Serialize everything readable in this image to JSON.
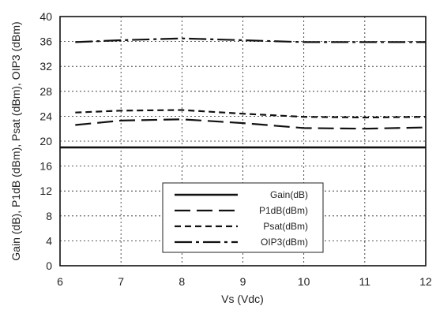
{
  "chart_data": {
    "type": "line",
    "title": "",
    "xlabel": "Vs (Vdc)",
    "ylabel": "Gain (dB), P1dB (dBm), Psat (dBm), OIP3 (dBm)",
    "xlim": [
      6,
      12
    ],
    "ylim": [
      0,
      40
    ],
    "xticks": [
      6,
      7,
      8,
      9,
      10,
      11,
      12
    ],
    "yticks": [
      0,
      4,
      8,
      12,
      16,
      20,
      24,
      28,
      32,
      36,
      40
    ],
    "grid": true,
    "legend_position": "lower-center",
    "x": [
      6.25,
      7,
      8,
      9,
      10,
      11,
      12
    ],
    "series": [
      {
        "name": "Gain(dB)",
        "style": "solid",
        "values": [
          19,
          19,
          19,
          19,
          19,
          19,
          19
        ]
      },
      {
        "name": "P1dB(dBm)",
        "style": "long-dash",
        "values": [
          22.6,
          23.3,
          23.5,
          22.9,
          22.1,
          22.0,
          22.2
        ]
      },
      {
        "name": "Psat(dBm)",
        "style": "short-dash",
        "values": [
          24.6,
          24.9,
          25.0,
          24.4,
          23.9,
          23.8,
          23.9
        ]
      },
      {
        "name": "OIP3(dBm)",
        "style": "dash-dot",
        "values": [
          35.9,
          36.2,
          36.5,
          36.2,
          35.9,
          35.9,
          35.9
        ]
      }
    ],
    "colors": {
      "line": "#111111",
      "grid": "#222222"
    }
  }
}
